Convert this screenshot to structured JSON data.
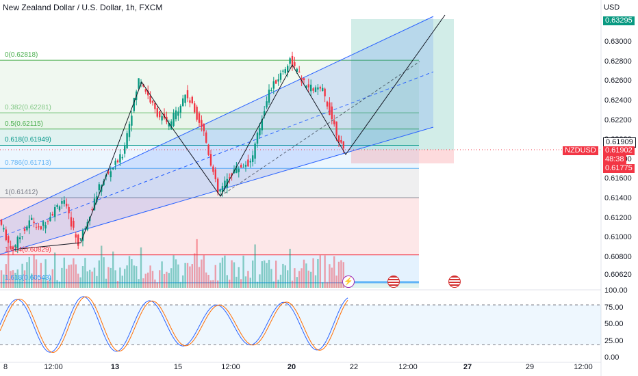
{
  "header": {
    "symbol_title": "New Zealand Dollar / U.S. Dollar, 1h, FXCM",
    "currency": "USD"
  },
  "price_axis": {
    "min": 0.6052,
    "max": 0.6335,
    "ticks": [
      "0.63200",
      "0.63000",
      "0.62800",
      "0.62600",
      "0.62400",
      "0.62200",
      "0.62000",
      "0.61800",
      "0.61600",
      "0.61400",
      "0.61200",
      "0.61000",
      "0.60800",
      "0.60620"
    ]
  },
  "price_tags": {
    "target": "0.63295",
    "upper": "0.61909",
    "symbol": "NZDUSD",
    "last": "0.61902",
    "countdown": "48:38",
    "stop": "0.61775"
  },
  "fib_levels": [
    {
      "label": "0(0.62818)",
      "value": 0.62818,
      "color": "#4caf50"
    },
    {
      "label": "0.382(0.62281)",
      "value": 0.62281,
      "color": "#81c784"
    },
    {
      "label": "0.5(0.62115)",
      "value": 0.62115,
      "color": "#4caf50"
    },
    {
      "label": "0.618(0.61949)",
      "value": 0.61949,
      "color": "#009688"
    },
    {
      "label": "0.786(0.61713)",
      "value": 0.61713,
      "color": "#64b5f6"
    },
    {
      "label": "1(0.61412)",
      "value": 0.61412,
      "color": "#787b86"
    },
    {
      "label": "1.414(0.60829)",
      "value": 0.60829,
      "color": "#f23645"
    },
    {
      "label": "1.618(0.60543)",
      "value": 0.60543,
      "color": "#2196f3"
    }
  ],
  "oscillator": {
    "ticks": [
      "100.00",
      "75.00",
      "50.00",
      "25.00",
      "0.00"
    ]
  },
  "time_axis": [
    {
      "label": "8",
      "bold": false
    },
    {
      "label": "12:00",
      "bold": false
    },
    {
      "label": "13",
      "bold": true
    },
    {
      "label": "15",
      "bold": false
    },
    {
      "label": "12:00",
      "bold": false
    },
    {
      "label": "20",
      "bold": true
    },
    {
      "label": "22",
      "bold": false
    },
    {
      "label": "12:00",
      "bold": false
    },
    {
      "label": "27",
      "bold": true
    },
    {
      "label": "29",
      "bold": false
    },
    {
      "label": "12:00",
      "bold": false
    }
  ],
  "events": {
    "lightning_icon": "lightning-icon",
    "flag_icon": "us-flag-icon"
  },
  "colors": {
    "bull": "#089981",
    "bear": "#f23645",
    "channel": "#2962ff",
    "target_tag": "#089981",
    "stop_tag": "#f23645",
    "symbol_tag": "#f23645"
  }
}
